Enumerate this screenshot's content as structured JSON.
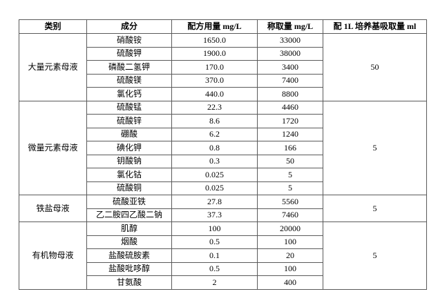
{
  "table": {
    "headers": [
      "类别",
      "成分",
      "配方用量 mg/L",
      "称取量 mg/L",
      "配 1L 培养基吸取量 ml"
    ],
    "border_color": "#595959",
    "groups": [
      {
        "category": "大量元素母液",
        "pipette_ml": "50",
        "rows": [
          {
            "component": "硝酸铵",
            "formula_mg_l": "1650.0",
            "weigh_mg_l": "33000"
          },
          {
            "component": "硫酸钾",
            "formula_mg_l": "1900.0",
            "weigh_mg_l": "38000"
          },
          {
            "component": "磷酸二氢钾",
            "formula_mg_l": "170.0",
            "weigh_mg_l": "3400"
          },
          {
            "component": "硫酸镁",
            "formula_mg_l": "370.0",
            "weigh_mg_l": "7400"
          },
          {
            "component": "氯化钙",
            "formula_mg_l": "440.0",
            "weigh_mg_l": "8800"
          }
        ]
      },
      {
        "category": "微量元素母液",
        "pipette_ml": "5",
        "rows": [
          {
            "component": "硫酸锰",
            "formula_mg_l": "22.3",
            "weigh_mg_l": "4460"
          },
          {
            "component": "硫酸锌",
            "formula_mg_l": "8.6",
            "weigh_mg_l": "1720"
          },
          {
            "component": "硼酸",
            "formula_mg_l": "6.2",
            "weigh_mg_l": "1240"
          },
          {
            "component": "碘化钾",
            "formula_mg_l": "0.8",
            "weigh_mg_l": "166"
          },
          {
            "component": "钥酸钠",
            "formula_mg_l": "0.3",
            "weigh_mg_l": "50"
          },
          {
            "component": "氯化钴",
            "formula_mg_l": "0.025",
            "weigh_mg_l": "5"
          },
          {
            "component": "硫酸铜",
            "formula_mg_l": "0.025",
            "weigh_mg_l": "5"
          }
        ]
      },
      {
        "category": "铁盐母液",
        "pipette_ml": "5",
        "rows": [
          {
            "component": "硫酸亚铁",
            "formula_mg_l": "27.8",
            "weigh_mg_l": "5560"
          },
          {
            "component": "乙二胺四乙酸二钠",
            "formula_mg_l": "37.3",
            "weigh_mg_l": "7460"
          }
        ]
      },
      {
        "category": "有机物母液",
        "pipette_ml": "5",
        "rows": [
          {
            "component": "肌醇",
            "formula_mg_l": "100",
            "weigh_mg_l": "20000"
          },
          {
            "component": "烟酸",
            "formula_mg_l": "0.5",
            "weigh_mg_l": "100"
          },
          {
            "component": "盐酸硫胺素",
            "formula_mg_l": "0.1",
            "weigh_mg_l": "20"
          },
          {
            "component": "盐酸吡哆醇",
            "formula_mg_l": "0.5",
            "weigh_mg_l": "100"
          },
          {
            "component": "甘氨酸",
            "formula_mg_l": "2",
            "weigh_mg_l": "400"
          }
        ]
      }
    ]
  }
}
